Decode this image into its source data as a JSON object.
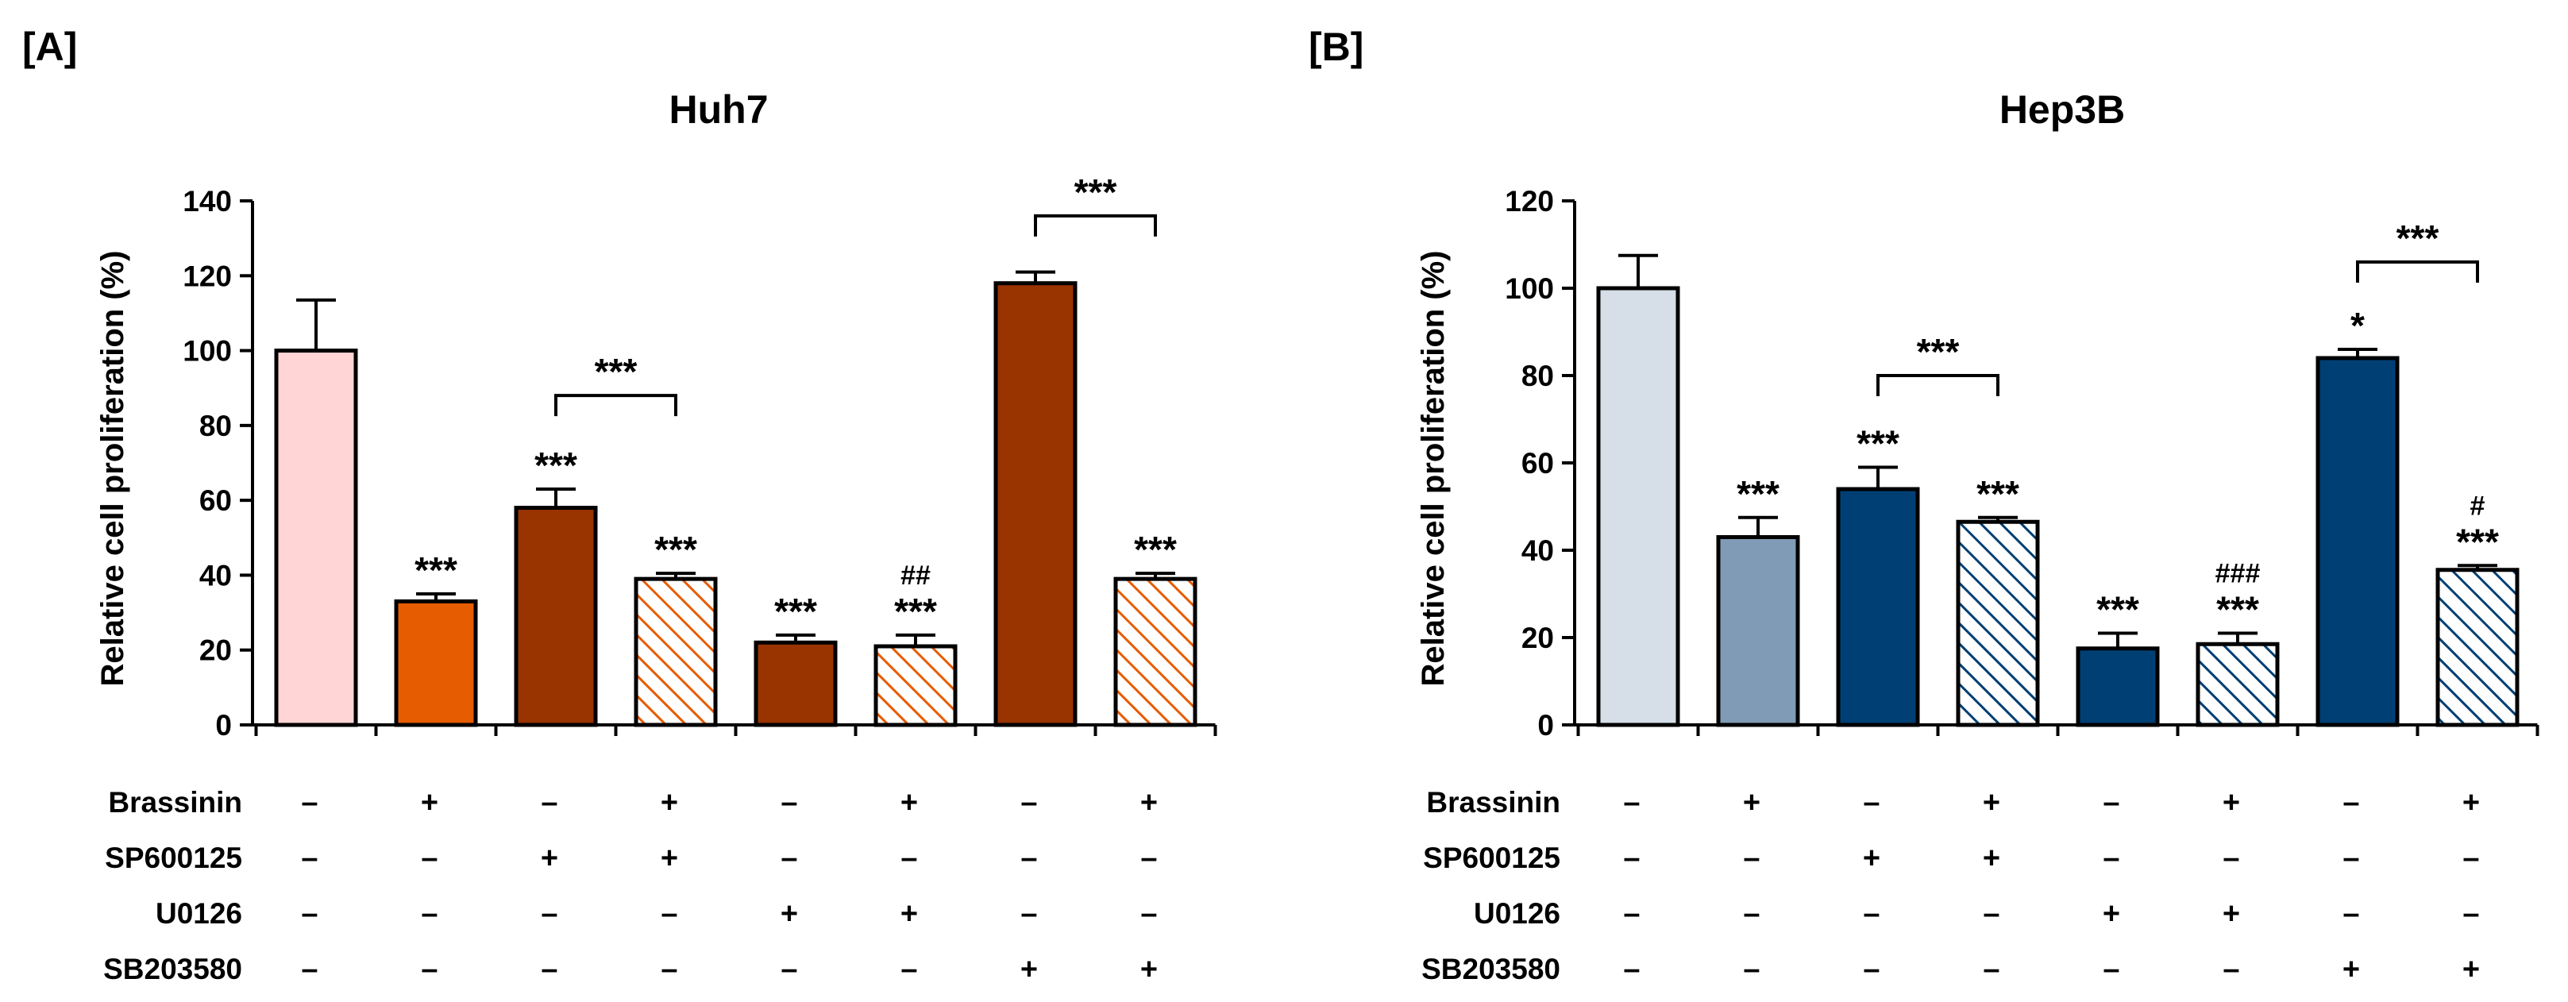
{
  "chart_data": [
    {
      "panel_label": "[A]",
      "type": "bar",
      "title": "Huh7",
      "ylabel": "Relative cell proliferation (%)",
      "xlabel": "",
      "ylim": [
        0,
        140
      ],
      "yticks": [
        "0",
        "20",
        "40",
        "60",
        "80",
        "100",
        "120",
        "140"
      ],
      "bars": [
        {
          "value": 100,
          "error": 13.5,
          "color": "#ffd5d5",
          "hatch": false,
          "star": "",
          "hash": ""
        },
        {
          "value": 33,
          "error": 2,
          "color": "#e65c00",
          "hatch": false,
          "star": "***",
          "hash": ""
        },
        {
          "value": 58,
          "error": 5,
          "color": "#993300",
          "hatch": false,
          "star": "***",
          "hash": ""
        },
        {
          "value": 39,
          "error": 1.5,
          "color": "#e65c00",
          "hatch": true,
          "star": "***",
          "hash": ""
        },
        {
          "value": 22,
          "error": 2,
          "color": "#993300",
          "hatch": false,
          "star": "***",
          "hash": ""
        },
        {
          "value": 21,
          "error": 3,
          "color": "#e65c00",
          "hatch": true,
          "star": "***",
          "hash": "##"
        },
        {
          "value": 118,
          "error": 3,
          "color": "#993300",
          "hatch": false,
          "star": "",
          "hash": ""
        },
        {
          "value": 39,
          "error": 1.5,
          "color": "#e65c00",
          "hatch": true,
          "star": "***",
          "hash": ""
        }
      ],
      "brackets": [
        {
          "from": 2,
          "to": 3,
          "level": 88,
          "label": "***"
        },
        {
          "from": 6,
          "to": 7,
          "level": 136,
          "label": "***"
        }
      ],
      "rows": [
        {
          "label": "Brassinin",
          "signs": [
            "–",
            "+",
            "–",
            "+",
            "–",
            "+",
            "–",
            "+"
          ]
        },
        {
          "label": "SP600125",
          "signs": [
            "–",
            "–",
            "+",
            "+",
            "–",
            "–",
            "–",
            "–"
          ]
        },
        {
          "label": "U0126",
          "signs": [
            "–",
            "–",
            "–",
            "–",
            "+",
            "+",
            "–",
            "–"
          ]
        },
        {
          "label": "SB203580",
          "signs": [
            "–",
            "–",
            "–",
            "–",
            "–",
            "–",
            "+",
            "+"
          ]
        }
      ]
    },
    {
      "panel_label": "[B]",
      "type": "bar",
      "title": "Hep3B",
      "ylabel": "Relative cell proliferation (%)",
      "xlabel": "",
      "ylim": [
        0,
        120
      ],
      "yticks": [
        "0",
        "20",
        "40",
        "60",
        "80",
        "100",
        "120"
      ],
      "bars": [
        {
          "value": 100,
          "error": 7.5,
          "color": "#d6dfe8",
          "hatch": false,
          "star": "",
          "hash": ""
        },
        {
          "value": 43,
          "error": 4.5,
          "color": "#7f9bb5",
          "hatch": false,
          "star": "***",
          "hash": ""
        },
        {
          "value": 54,
          "error": 5,
          "color": "#003f73",
          "hatch": false,
          "star": "***",
          "hash": ""
        },
        {
          "value": 46.5,
          "error": 1,
          "color": "#003f73",
          "hatch": true,
          "star": "***",
          "hash": ""
        },
        {
          "value": 17.5,
          "error": 3.5,
          "color": "#003f73",
          "hatch": false,
          "star": "***",
          "hash": ""
        },
        {
          "value": 18.5,
          "error": 2.5,
          "color": "#003f73",
          "hatch": true,
          "star": "***",
          "hash": "###"
        },
        {
          "value": 84,
          "error": 2,
          "color": "#003f73",
          "hatch": false,
          "star": "*",
          "hash": ""
        },
        {
          "value": 35.5,
          "error": 1,
          "color": "#003f73",
          "hatch": true,
          "star": "***",
          "hash": "#"
        }
      ],
      "brackets": [
        {
          "from": 2,
          "to": 3,
          "level": 80,
          "label": "***"
        },
        {
          "from": 6,
          "to": 7,
          "level": 106,
          "label": "***"
        }
      ],
      "rows": [
        {
          "label": "Brassinin",
          "signs": [
            "–",
            "+",
            "–",
            "+",
            "–",
            "+",
            "–",
            "+"
          ]
        },
        {
          "label": "SP600125",
          "signs": [
            "–",
            "–",
            "+",
            "+",
            "–",
            "–",
            "–",
            "–"
          ]
        },
        {
          "label": "U0126",
          "signs": [
            "–",
            "–",
            "–",
            "–",
            "+",
            "+",
            "–",
            "–"
          ]
        },
        {
          "label": "SB203580",
          "signs": [
            "–",
            "–",
            "–",
            "–",
            "–",
            "–",
            "+",
            "+"
          ]
        }
      ]
    }
  ]
}
